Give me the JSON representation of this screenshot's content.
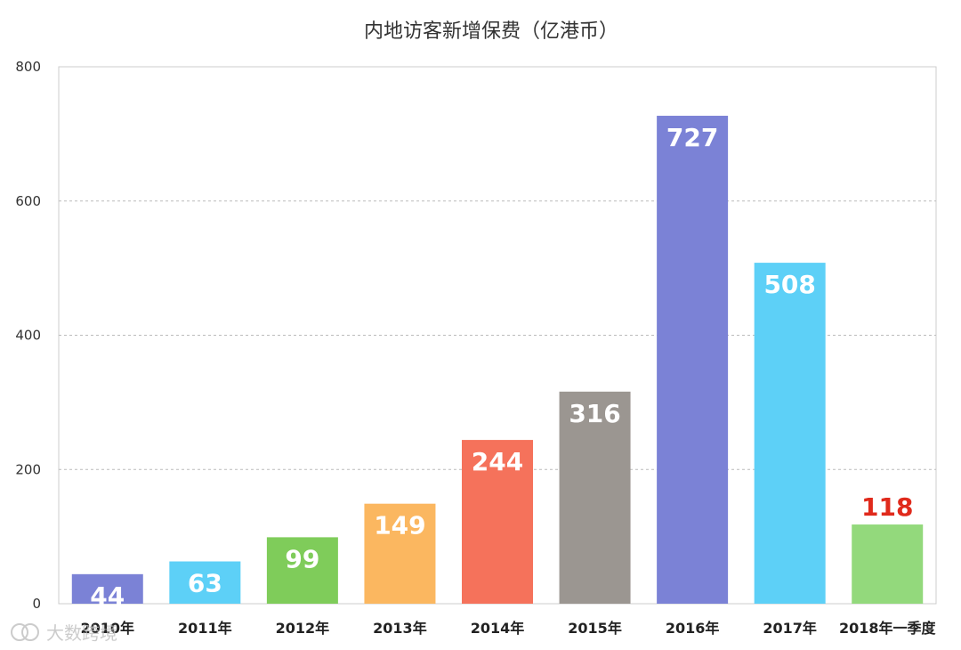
{
  "chart_data": {
    "type": "bar",
    "title": "内地访客新增保费（亿港币）",
    "xlabel": "",
    "ylabel": "",
    "categories": [
      "2010年",
      "2011年",
      "2012年",
      "2013年",
      "2014年",
      "2015年",
      "2016年",
      "2017年",
      "2018年一季度"
    ],
    "values": [
      44,
      63,
      99,
      149,
      244,
      316,
      727,
      508,
      118
    ],
    "data_labels": [
      "44",
      "63",
      "99",
      "149",
      "244",
      "316",
      "727",
      "508",
      "118"
    ],
    "colors": [
      "#7b82d6",
      "#5dd0f7",
      "#7fcc5a",
      "#fbb760",
      "#f5725b",
      "#9b9691",
      "#7b82d6",
      "#5dd0f7",
      "#93d97c"
    ],
    "label_colors": [
      "#ffffff",
      "#ffffff",
      "#ffffff",
      "#ffffff",
      "#ffffff",
      "#ffffff",
      "#ffffff",
      "#ffffff",
      "#e02a1c"
    ],
    "yticks": [
      "0",
      "200",
      "400",
      "600",
      "800"
    ],
    "ylim": [
      0,
      800
    ],
    "grid": true,
    "legend": "none"
  },
  "watermark": {
    "icon": "watermark-logo-icon",
    "text": "大数跨境"
  }
}
